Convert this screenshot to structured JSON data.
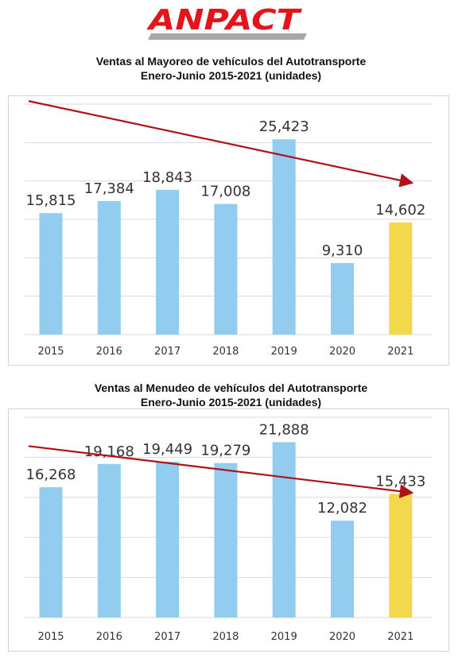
{
  "logo": {
    "text": "ANPACT",
    "color": "#e3141b",
    "stripe_color": "#a8a8a8"
  },
  "colors": {
    "bar": "#92cdf0",
    "bar_highlight": "#f2d94c",
    "trend": "#b01116",
    "grid": "#d9d9d9"
  },
  "chart_data": [
    {
      "type": "bar",
      "title_line1": "Ventas al Mayoreo de vehículos del Autotransporte",
      "title_line2": "Enero-Junio 2015-2021 (unidades)",
      "categories": [
        "2015",
        "2016",
        "2017",
        "2018",
        "2019",
        "2020",
        "2021"
      ],
      "values": [
        15815,
        17384,
        18843,
        17008,
        25423,
        9310,
        14602
      ],
      "labels": [
        "15,815",
        "17,384",
        "18,843",
        "17,008",
        "25,423",
        "9,310",
        "14,602"
      ],
      "highlight_index": 6,
      "ylim": [
        0,
        30000
      ],
      "grid": true,
      "trend_arrow": {
        "from_value": 30400,
        "to_value": 19800
      }
    },
    {
      "type": "bar",
      "title_line1": "Ventas al Menudeo de vehículos del Autotransporte",
      "title_line2": "Enero-Junio 2015-2021 (unidades)",
      "categories": [
        "2015",
        "2016",
        "2017",
        "2018",
        "2019",
        "2020",
        "2021"
      ],
      "values": [
        16268,
        19168,
        19449,
        19279,
        21888,
        12082,
        15433
      ],
      "labels": [
        "16,268",
        "19,168",
        "19,449",
        "19,279",
        "21,888",
        "12,082",
        "15,433"
      ],
      "highlight_index": 6,
      "ylim": [
        0,
        25000
      ],
      "grid": true,
      "trend_arrow": {
        "from_value": 21400,
        "to_value": 15600
      }
    }
  ]
}
